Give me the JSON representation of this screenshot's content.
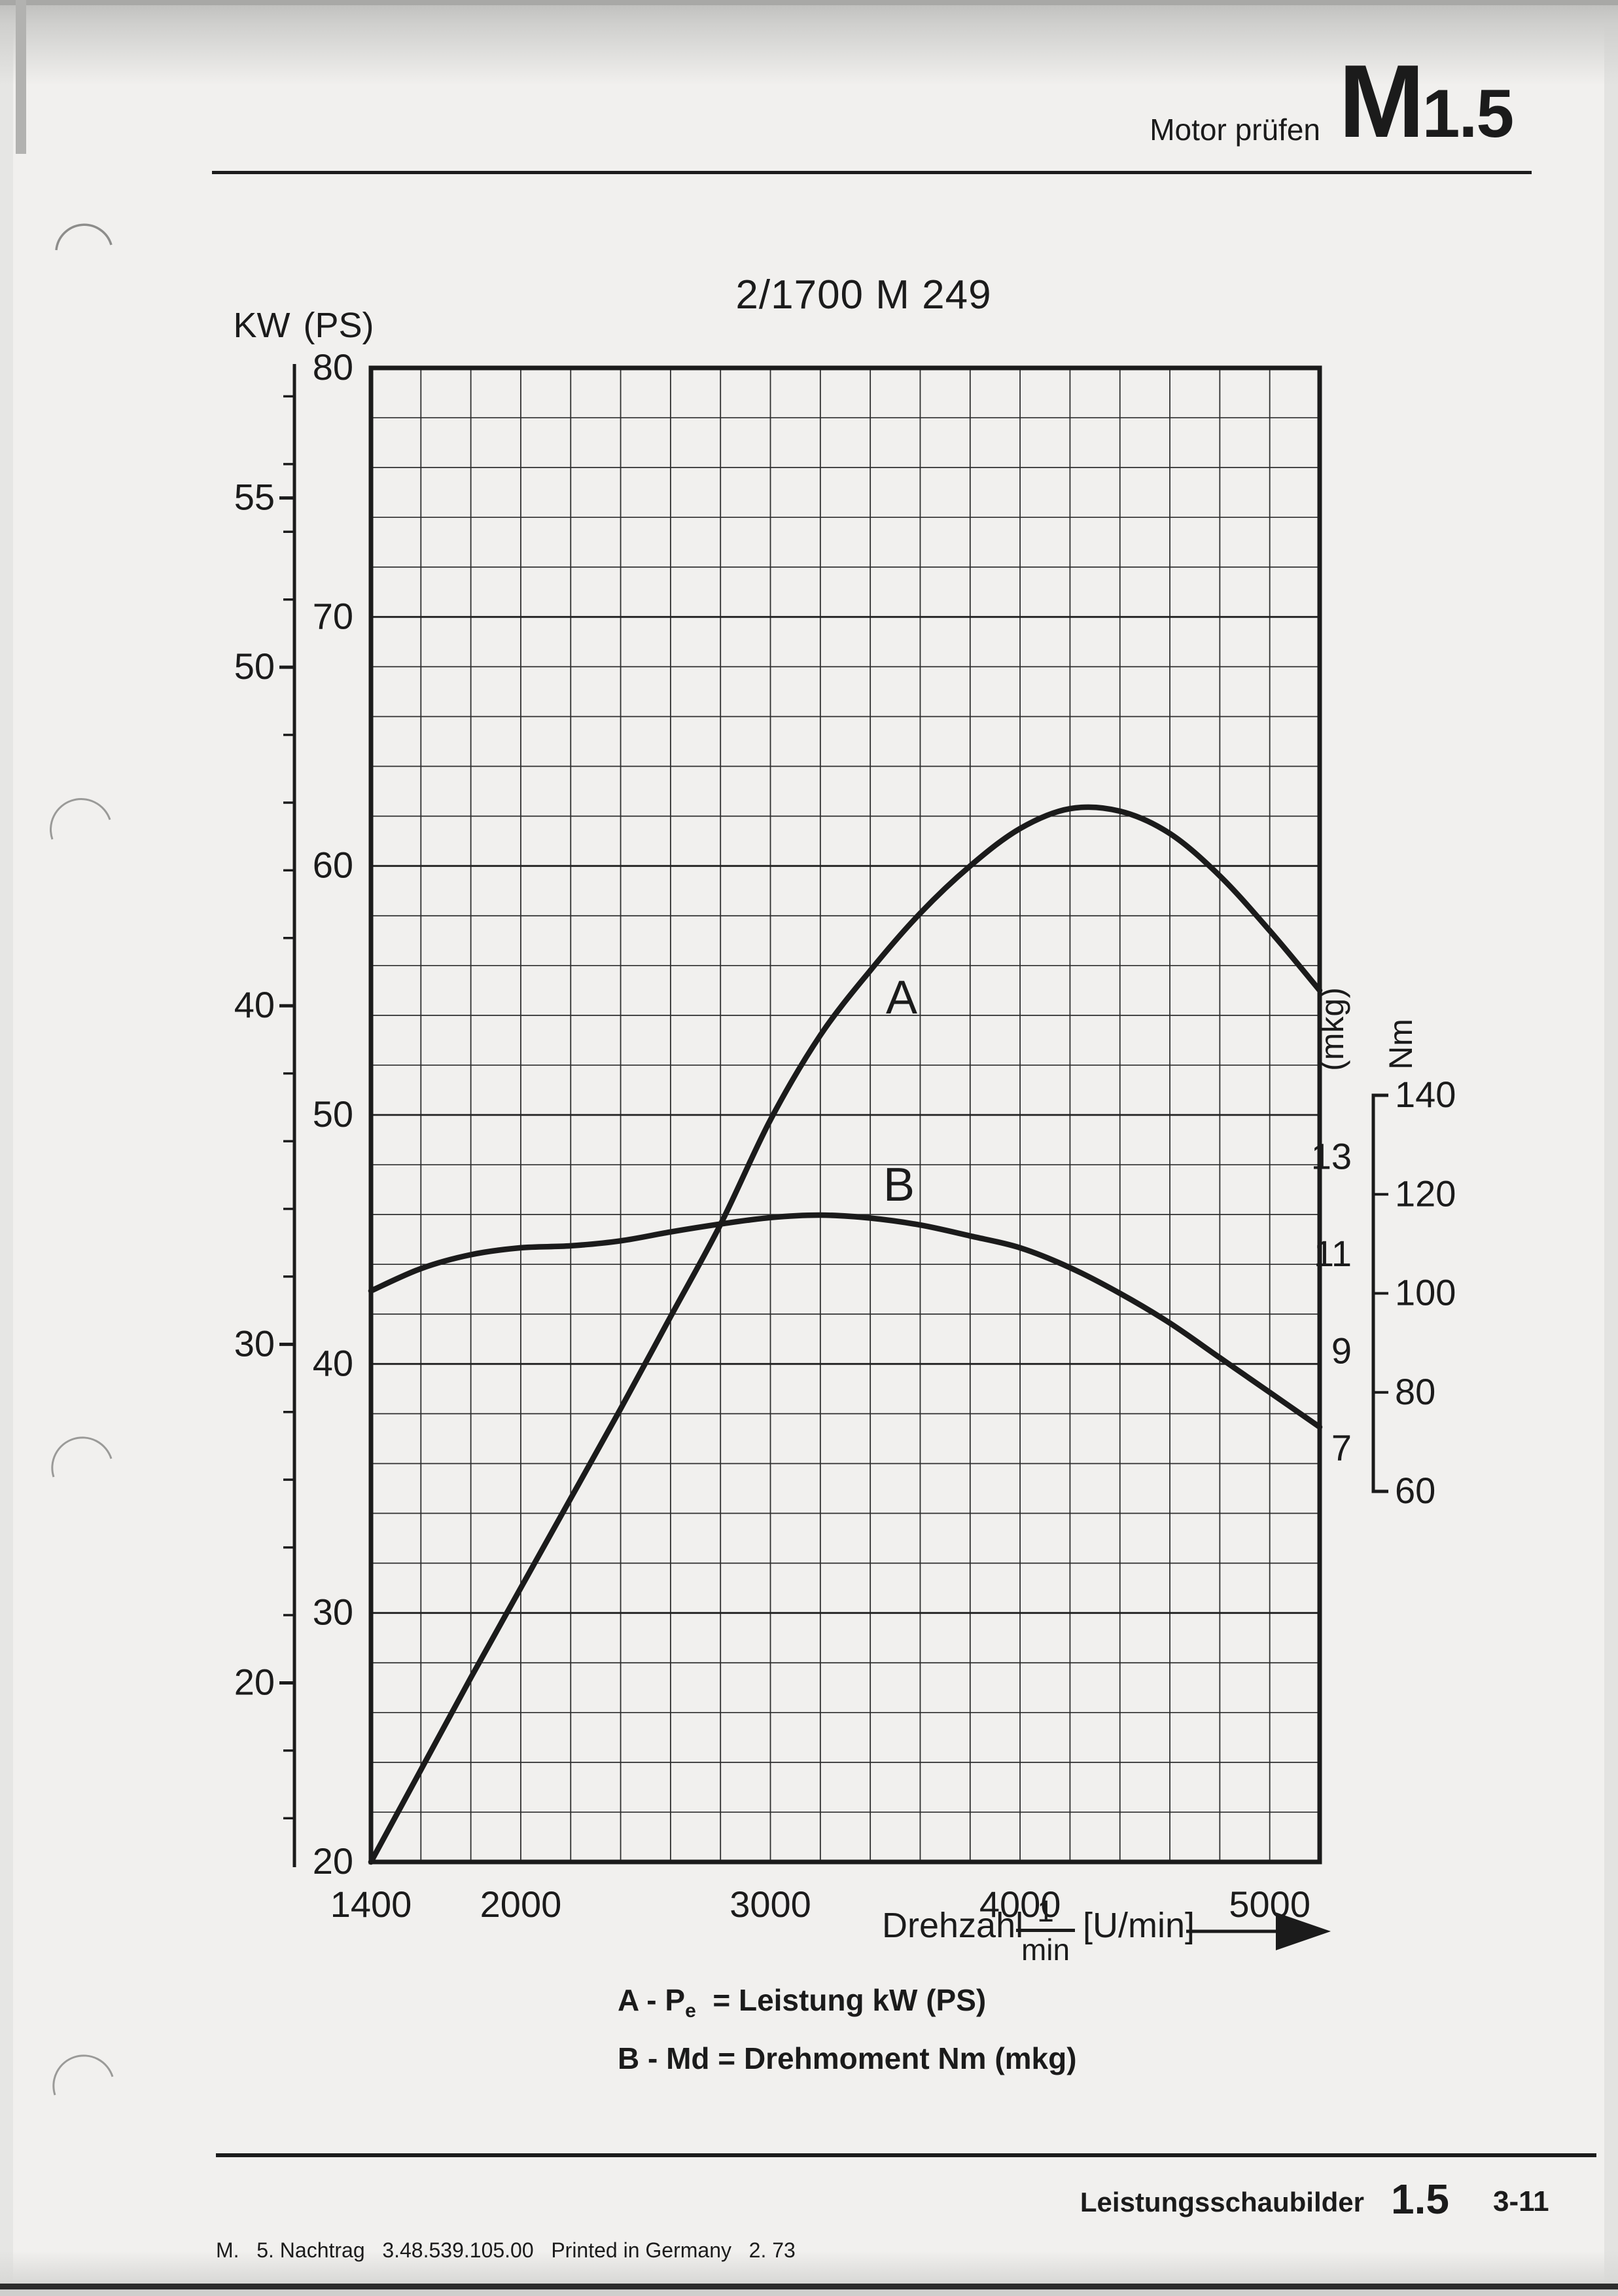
{
  "colors": {
    "paper": "#f1f0ee",
    "ink": "#1b1b1b"
  },
  "header": {
    "title": "Motor prüfen",
    "code_main": "M",
    "code_sub": "1.5"
  },
  "chart": {
    "title": "2/1700 M 249",
    "left_axis_unit_kw": "KW",
    "left_axis_unit_ps": "(PS)",
    "right_axis_unit_mkg": "(mkg)",
    "right_axis_unit_nm": "Nm",
    "curve_a_label": "A",
    "curve_b_label": "B",
    "x_title": "Drehzahl",
    "x_fraction_numerator": "1",
    "x_fraction_denominator": "min",
    "x_unit": "[U/min]"
  },
  "legend": {
    "a_prefix": "A - P",
    "a_sub": "e",
    "a_text": "  = Leistung kW (PS)",
    "b_text": "B - Md = Drehmoment Nm (mkg)"
  },
  "footer": {
    "label": "Leistungsschaubilder",
    "code": "1.5",
    "page": "3-11",
    "imprint": "M.   5. Nachtrag   3.48.539.105.00   Printed in Germany   2. 73"
  },
  "chart_data": {
    "type": "line",
    "title": "2/1700 M 249",
    "grid": true,
    "x_axis": {
      "label": "Drehzahl [U/min]",
      "range": [
        1400,
        5200
      ],
      "grid_step": 200,
      "tick_labels": [
        1400,
        2000,
        3000,
        4000,
        5000
      ]
    },
    "y_left_axis": {
      "label": "Leistung",
      "units": [
        "KW",
        "(PS)"
      ],
      "ps_range": [
        20,
        80
      ],
      "grid_step_ps": 2,
      "ps_tick_labels": [
        80,
        70,
        60,
        50,
        40,
        30,
        20
      ],
      "kw_tick_labels": [
        55,
        50,
        40,
        30,
        20
      ],
      "kw_minor_tick_step": 2,
      "kw_minor_tick_range": [
        16,
        58
      ]
    },
    "y_right_axis": {
      "label": "Drehmoment",
      "units": [
        "Nm",
        "(mkg)"
      ],
      "nm_range": [
        60,
        140
      ],
      "nm_tick_labels": [
        140,
        120,
        100,
        80,
        60
      ],
      "mkg_tick_labels": [
        13,
        11,
        9,
        7
      ]
    },
    "series": [
      {
        "name": "A",
        "quantity": "Pe Leistung",
        "unit": "PS",
        "axis": "left",
        "rpm": [
          1400,
          1600,
          1800,
          2000,
          2200,
          2400,
          2600,
          2800,
          3000,
          3200,
          3400,
          3600,
          3800,
          4000,
          4200,
          4400,
          4600,
          4800,
          5000,
          5200
        ],
        "values": [
          20,
          23.7,
          27.4,
          31,
          34.6,
          38.2,
          41.9,
          45.6,
          49.8,
          53.2,
          55.8,
          58.1,
          60,
          61.5,
          62.3,
          62.2,
          61.3,
          59.6,
          57.4,
          55
        ]
      },
      {
        "name": "B",
        "quantity": "Md Drehmoment",
        "unit": "Nm",
        "axis": "right",
        "rpm": [
          1400,
          1600,
          1800,
          2000,
          2200,
          2400,
          2600,
          2800,
          3000,
          3200,
          3400,
          3600,
          3800,
          4000,
          4200,
          4400,
          4600,
          4800,
          5000,
          5200
        ],
        "values": [
          100.5,
          105,
          107.8,
          109.2,
          109.6,
          110.6,
          112.4,
          114,
          115.3,
          115.8,
          115.2,
          113.8,
          111.6,
          109.2,
          105.2,
          100,
          94,
          87,
          80,
          73
        ]
      }
    ]
  }
}
